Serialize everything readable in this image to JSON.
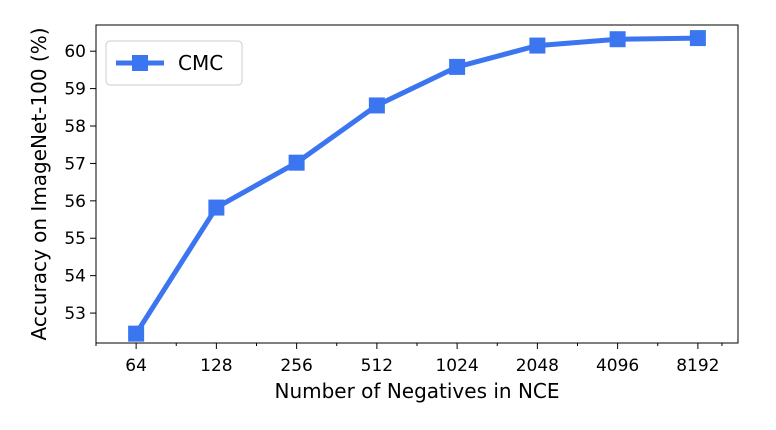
{
  "chart_data": {
    "type": "line",
    "xlabel": "Number of Negatives in NCE",
    "ylabel": "Accuracy on ImageNet-100 (%)",
    "x_scale": "log2",
    "x": [
      64,
      128,
      256,
      512,
      1024,
      2048,
      4096,
      8192
    ],
    "x_tick_labels": [
      "64",
      "128",
      "256",
      "512",
      "1024",
      "2048",
      "4096",
      "8192"
    ],
    "y_ticks": [
      53,
      54,
      55,
      56,
      57,
      58,
      59,
      60
    ],
    "y_tick_labels": [
      "53",
      "54",
      "55",
      "56",
      "57",
      "58",
      "59",
      "60"
    ],
    "ylim": [
      52.2,
      60.7
    ],
    "grid": false,
    "legend_position": "top-left",
    "series": [
      {
        "name": "CMC",
        "color": "#3b76f0",
        "marker": "square",
        "values": [
          52.45,
          55.82,
          57.02,
          58.55,
          59.58,
          60.15,
          60.32,
          60.35
        ]
      }
    ]
  }
}
